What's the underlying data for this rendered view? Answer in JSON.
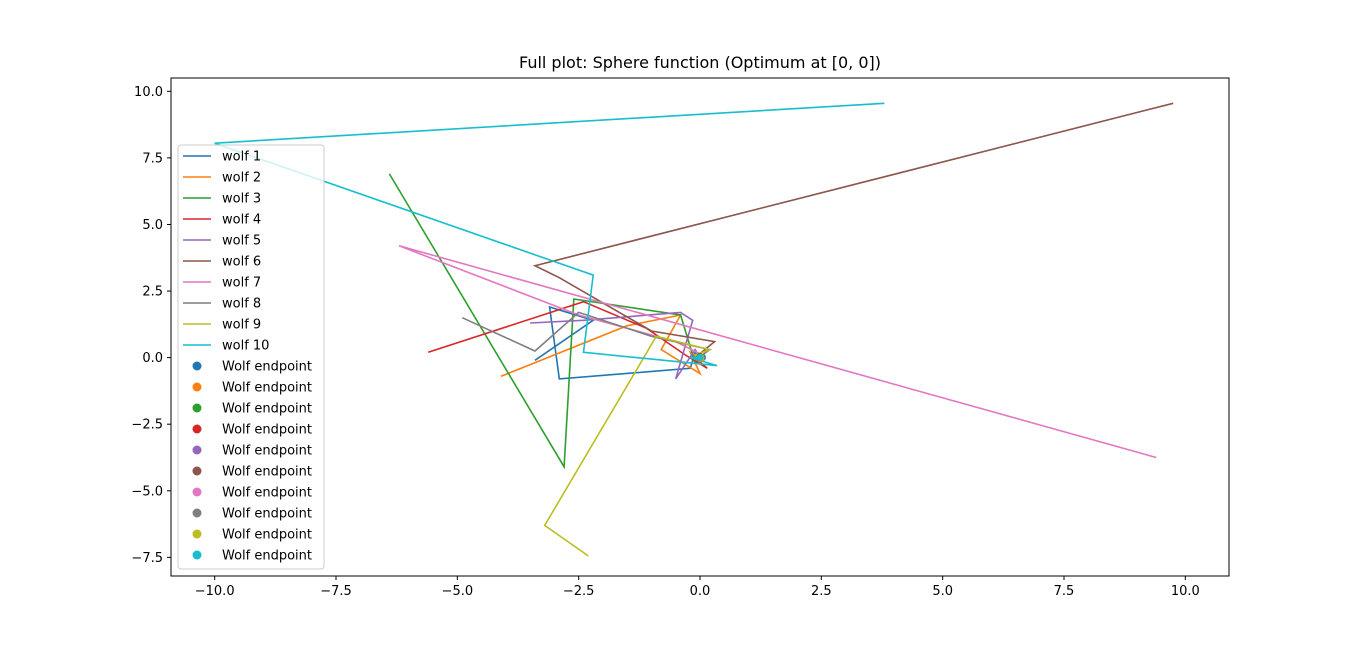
{
  "chart_data": {
    "type": "line",
    "title": "Full plot: Sphere function (Optimum at [0, 0])",
    "xlabel": "",
    "ylabel": "",
    "xlim": [
      -10.9,
      10.9
    ],
    "ylim": [
      -8.2,
      10.5
    ],
    "xticks": [
      -10.0,
      -7.5,
      -5.0,
      -2.5,
      0.0,
      2.5,
      5.0,
      7.5,
      10.0
    ],
    "yticks": [
      -7.5,
      -5.0,
      -2.5,
      0.0,
      2.5,
      5.0,
      7.5,
      10.0
    ],
    "xtick_labels": [
      "−10.0",
      "−7.5",
      "−5.0",
      "−2.5",
      "0.0",
      "2.5",
      "5.0",
      "7.5",
      "10.0"
    ],
    "ytick_labels": [
      "−7.5",
      "−5.0",
      "−2.5",
      "0.0",
      "2.5",
      "5.0",
      "7.5",
      "10.0"
    ],
    "grid": false,
    "legend_position": "center-left",
    "series": [
      {
        "name": "wolf 1",
        "color": "#1f77b4",
        "points": [
          [
            -3.4,
            -0.1
          ],
          [
            -2.2,
            1.4
          ],
          [
            -3.1,
            1.9
          ],
          [
            -2.9,
            -0.8
          ],
          [
            -0.2,
            -0.4
          ],
          [
            -0.1,
            0.2
          ],
          [
            0.05,
            0.0
          ]
        ]
      },
      {
        "name": "wolf 2",
        "color": "#ff7f0e",
        "points": [
          [
            -4.1,
            -0.7
          ],
          [
            -1.5,
            1.2
          ],
          [
            -0.4,
            1.6
          ],
          [
            -0.8,
            0.3
          ],
          [
            0.0,
            -0.6
          ],
          [
            -0.2,
            0.2
          ],
          [
            0.02,
            -0.05
          ]
        ]
      },
      {
        "name": "wolf 3",
        "color": "#2ca02c",
        "points": [
          [
            -6.4,
            6.9
          ],
          [
            -2.8,
            -4.1
          ],
          [
            -2.6,
            2.2
          ],
          [
            -0.4,
            1.6
          ],
          [
            -0.1,
            -0.2
          ],
          [
            0.1,
            0.1
          ],
          [
            0.0,
            0.0
          ]
        ]
      },
      {
        "name": "wolf 4",
        "color": "#d62728",
        "points": [
          [
            -5.6,
            0.2
          ],
          [
            -2.4,
            2.1
          ],
          [
            -1.1,
            1.1
          ],
          [
            -0.3,
            0.1
          ],
          [
            0.15,
            -0.4
          ],
          [
            -0.1,
            0.0
          ],
          [
            0.02,
            0.01
          ]
        ]
      },
      {
        "name": "wolf 5",
        "color": "#9467bd",
        "points": [
          [
            -3.5,
            1.3
          ],
          [
            -2.4,
            1.4
          ],
          [
            -0.4,
            1.7
          ],
          [
            -0.15,
            1.4
          ],
          [
            -0.5,
            -0.8
          ],
          [
            -0.1,
            0.3
          ],
          [
            0.0,
            0.0
          ]
        ]
      },
      {
        "name": "wolf 6",
        "color": "#8c564b",
        "points": [
          [
            9.75,
            9.55
          ],
          [
            -3.4,
            3.45
          ],
          [
            -2.9,
            3.0
          ],
          [
            -1.0,
            1.0
          ],
          [
            0.3,
            0.6
          ],
          [
            -0.1,
            0.0
          ],
          [
            0.0,
            0.05
          ]
        ]
      },
      {
        "name": "wolf 7",
        "color": "#e377c2",
        "points": [
          [
            9.4,
            -3.75
          ],
          [
            -6.2,
            4.2
          ],
          [
            -2.5,
            1.6
          ],
          [
            -0.5,
            0.6
          ],
          [
            0.05,
            0.1
          ],
          [
            0.0,
            0.0
          ]
        ]
      },
      {
        "name": "wolf 8",
        "color": "#7f7f7f",
        "points": [
          [
            -4.9,
            1.5
          ],
          [
            -3.4,
            0.25
          ],
          [
            -2.5,
            1.7
          ],
          [
            -1.0,
            0.8
          ],
          [
            0.2,
            0.3
          ],
          [
            -0.1,
            -0.1
          ],
          [
            0.0,
            0.0
          ]
        ]
      },
      {
        "name": "wolf 9",
        "color": "#bcbd22",
        "points": [
          [
            -2.3,
            -7.45
          ],
          [
            -3.2,
            -6.3
          ],
          [
            -0.9,
            0.8
          ],
          [
            0.2,
            0.3
          ],
          [
            -0.1,
            0.1
          ],
          [
            0.02,
            0.0
          ]
        ]
      },
      {
        "name": "wolf 10",
        "color": "#17becf",
        "points": [
          [
            3.8,
            9.55
          ],
          [
            -10.0,
            8.05
          ],
          [
            -2.2,
            3.1
          ],
          [
            -2.4,
            0.2
          ],
          [
            0.35,
            -0.3
          ],
          [
            -0.2,
            0.0
          ],
          [
            0.0,
            0.0
          ]
        ]
      }
    ],
    "endpoints": [
      {
        "name": "Wolf endpoint",
        "color": "#1f77b4",
        "x": 0.05,
        "y": 0.0
      },
      {
        "name": "Wolf endpoint",
        "color": "#ff7f0e",
        "x": 0.02,
        "y": -0.05
      },
      {
        "name": "Wolf endpoint",
        "color": "#2ca02c",
        "x": 0.0,
        "y": 0.0
      },
      {
        "name": "Wolf endpoint",
        "color": "#d62728",
        "x": 0.02,
        "y": 0.01
      },
      {
        "name": "Wolf endpoint",
        "color": "#9467bd",
        "x": 0.0,
        "y": 0.0
      },
      {
        "name": "Wolf endpoint",
        "color": "#8c564b",
        "x": 0.0,
        "y": 0.05
      },
      {
        "name": "Wolf endpoint",
        "color": "#e377c2",
        "x": 0.0,
        "y": 0.0
      },
      {
        "name": "Wolf endpoint",
        "color": "#7f7f7f",
        "x": 0.0,
        "y": 0.0
      },
      {
        "name": "Wolf endpoint",
        "color": "#bcbd22",
        "x": 0.02,
        "y": 0.0
      },
      {
        "name": "Wolf endpoint",
        "color": "#17becf",
        "x": 0.0,
        "y": 0.0
      }
    ]
  }
}
